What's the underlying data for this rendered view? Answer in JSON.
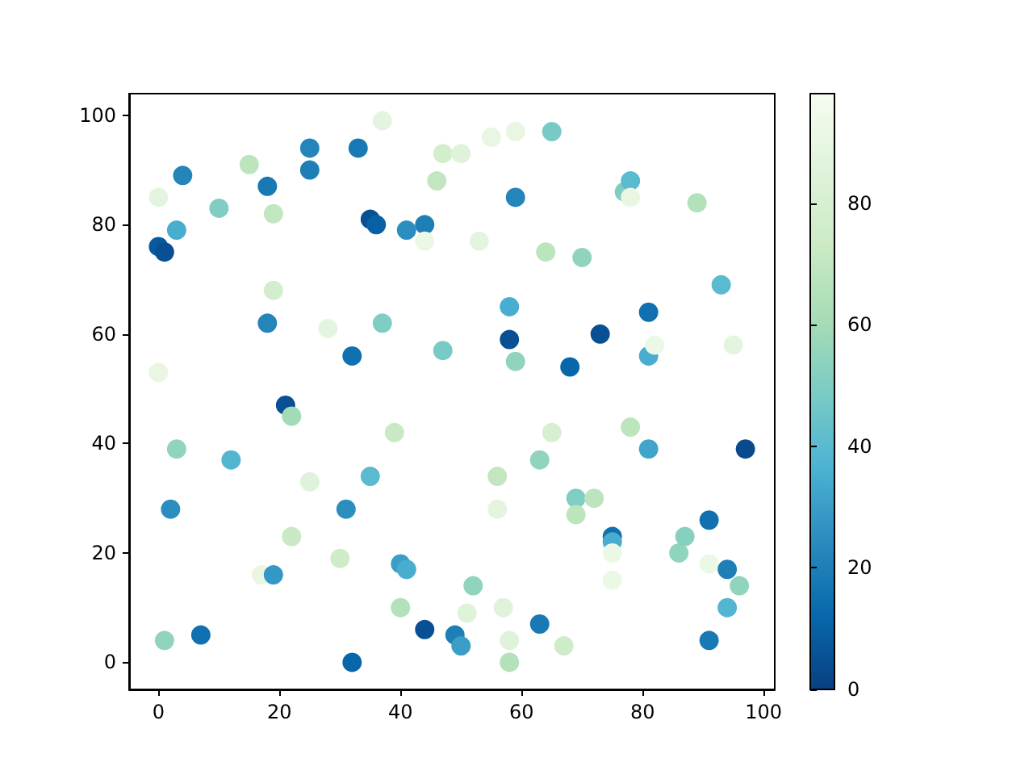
{
  "chart_data": {
    "type": "scatter",
    "marker": "circle",
    "grid": false,
    "xlim": [
      -4.85,
      101.85
    ],
    "ylim": [
      -4.95,
      103.95
    ],
    "xticks": [
      0,
      20,
      40,
      60,
      80,
      100
    ],
    "yticks": [
      0,
      20,
      40,
      60,
      80,
      100
    ],
    "clim": [
      0,
      98
    ],
    "cticks": [
      0,
      20,
      40,
      60,
      80
    ],
    "x": [
      0,
      1,
      0,
      0,
      1,
      3,
      4,
      3,
      2,
      7,
      10,
      12,
      15,
      18,
      19,
      19,
      18,
      17,
      19,
      21,
      22,
      22,
      25,
      25,
      25,
      28,
      30,
      31,
      32,
      32,
      33,
      35,
      36,
      35,
      37,
      37,
      39,
      40,
      41,
      40,
      41,
      44,
      44,
      44,
      46,
      47,
      47,
      49,
      50,
      50,
      51,
      52,
      53,
      55,
      56,
      56,
      57,
      58,
      58,
      59,
      58,
      59,
      58,
      59,
      63,
      63,
      64,
      65,
      65,
      67,
      68,
      69,
      69,
      70,
      72,
      73,
      75,
      75,
      75,
      75,
      77,
      78,
      78,
      78,
      81,
      81,
      82,
      81,
      86,
      87,
      89,
      91,
      91,
      91,
      93,
      94,
      94,
      95,
      96,
      97
    ],
    "values": [
      76,
      75,
      85,
      53,
      4,
      79,
      89,
      39,
      28,
      5,
      83,
      37,
      91,
      87,
      82,
      68,
      62,
      16,
      16,
      47,
      45,
      23,
      94,
      90,
      33,
      61,
      19,
      28,
      0,
      56,
      94,
      81,
      80,
      34,
      99,
      62,
      42,
      18,
      17,
      10,
      79,
      80,
      77,
      6,
      88,
      93,
      57,
      5,
      3,
      93,
      9,
      14,
      77,
      96,
      34,
      28,
      10,
      4,
      0,
      97,
      65,
      85,
      59,
      55,
      7,
      37,
      75,
      97,
      42,
      3,
      54,
      30,
      27,
      74,
      30,
      60,
      23,
      22,
      20,
      15,
      86,
      88,
      85,
      43,
      64,
      56,
      58,
      39,
      20,
      23,
      84,
      26,
      4,
      18,
      69,
      17,
      10,
      58,
      14,
      39
    ],
    "cvalues": [
      8,
      5,
      88,
      90,
      55,
      35,
      22,
      55,
      25,
      15,
      50,
      38,
      68,
      18,
      70,
      78,
      22,
      90,
      28,
      5,
      60,
      72,
      22,
      20,
      85,
      88,
      75,
      25,
      12,
      15,
      18,
      5,
      10,
      40,
      88,
      50,
      72,
      30,
      35,
      65,
      25,
      20,
      92,
      5,
      70,
      78,
      48,
      20,
      30,
      85,
      85,
      55,
      88,
      90,
      70,
      88,
      85,
      85,
      65,
      90,
      35,
      22,
      5,
      55,
      18,
      55,
      68,
      48,
      80,
      75,
      12,
      50,
      68,
      55,
      68,
      5,
      15,
      35,
      92,
      92,
      50,
      40,
      90,
      68,
      15,
      35,
      92,
      32,
      55,
      52,
      65,
      15,
      18,
      92,
      40,
      20,
      38,
      88,
      55,
      3
    ]
  }
}
